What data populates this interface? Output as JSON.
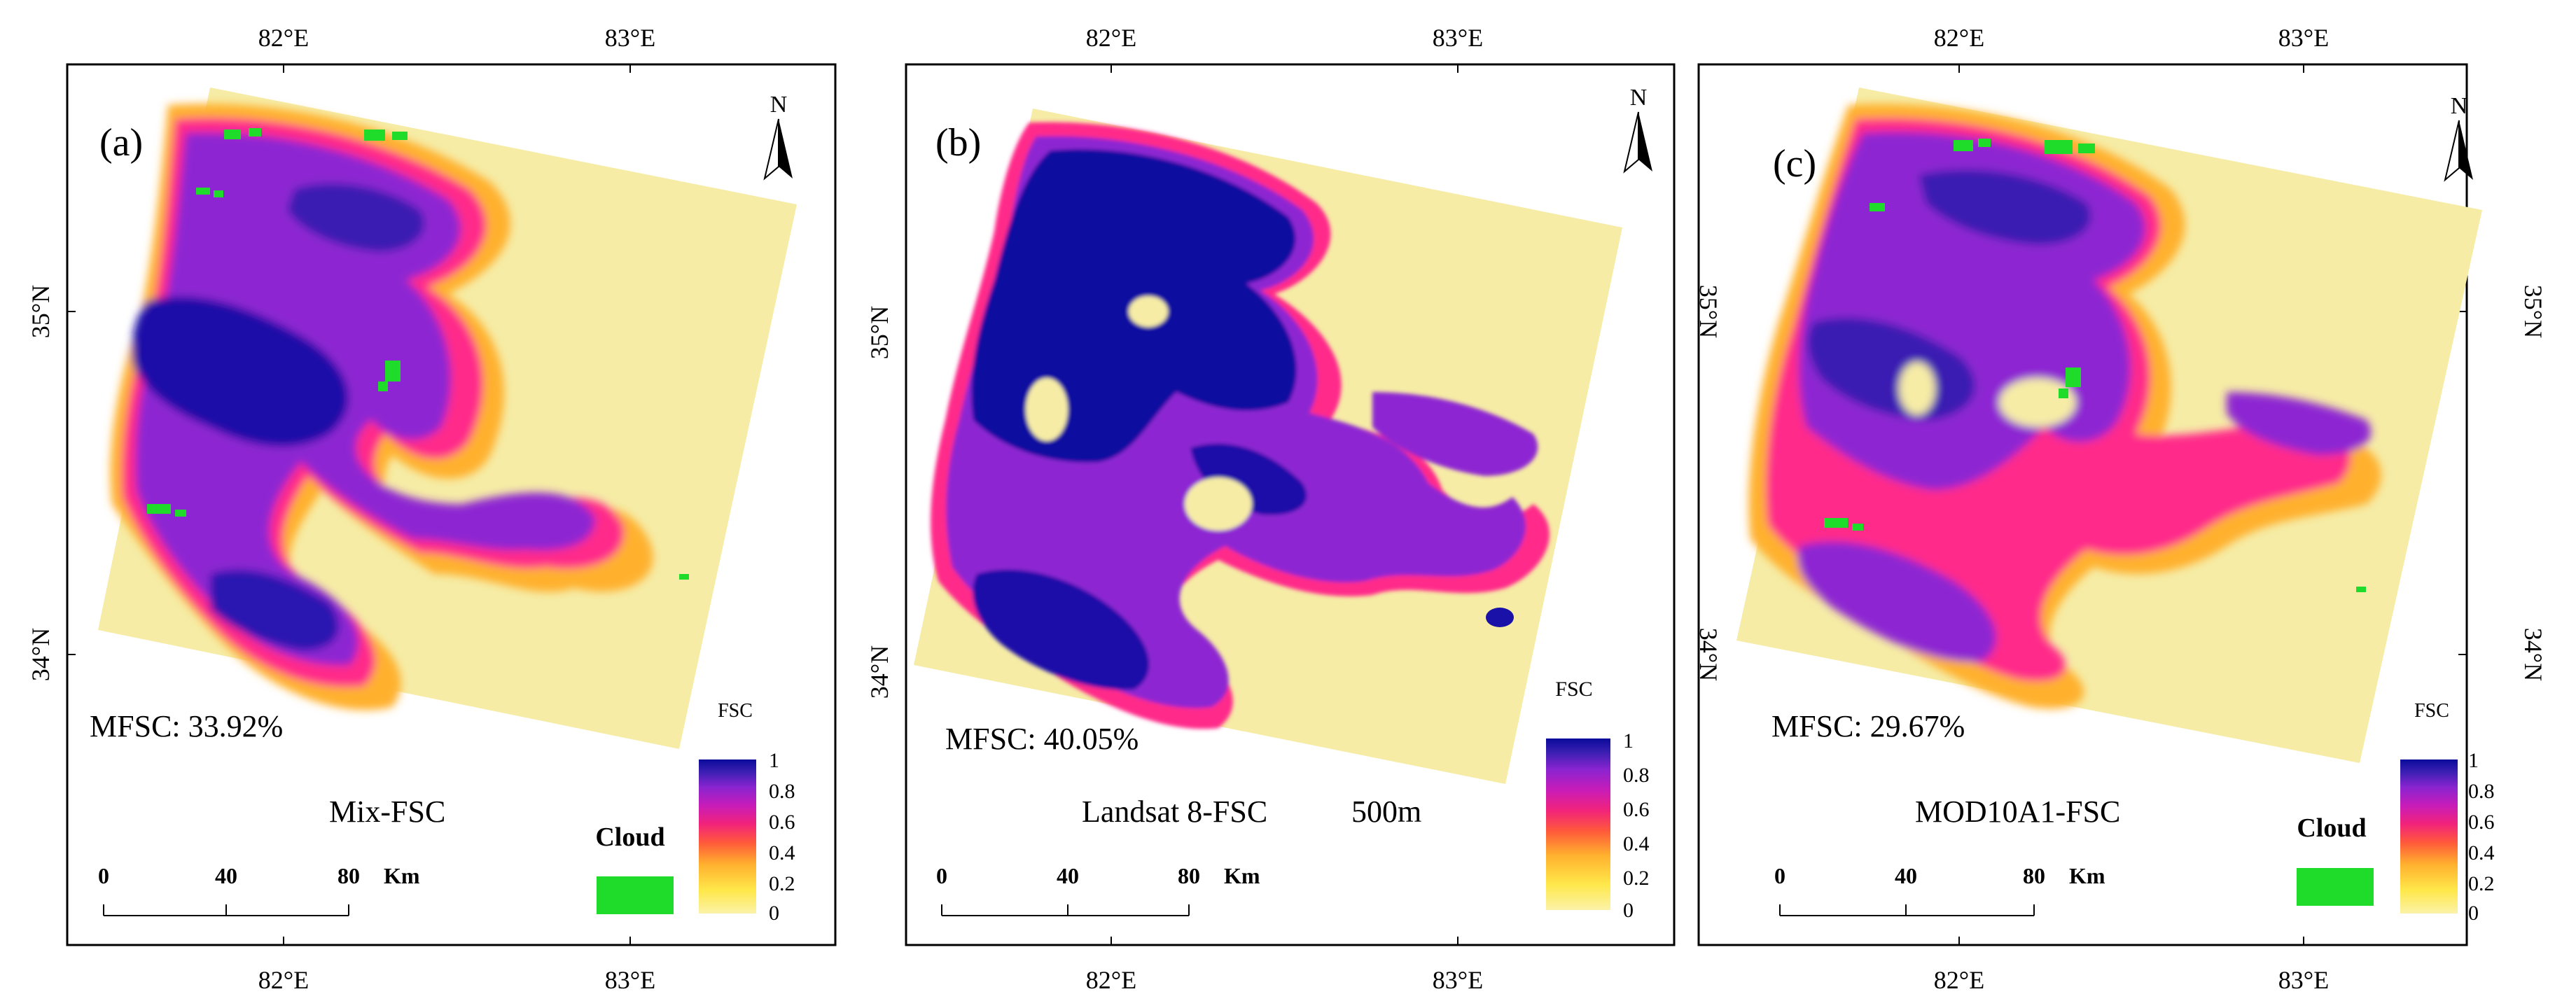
{
  "figure": {
    "colors": {
      "fsc_ramp": [
        "#fbf2a8",
        "#ffe84a",
        "#ffb02e",
        "#ff5a3a",
        "#f2237a",
        "#c81cb8",
        "#8a24d0",
        "#3a1fb2",
        "#0a0a9a"
      ],
      "cloud": "#1fdc2a",
      "snow_dense": "#1a11a8",
      "snow_mid": "#8d28d2",
      "snow_edge": "#ff2a8a",
      "snow_low": "#ffb12d",
      "background_land": "#f6eca6"
    },
    "panels": [
      {
        "id": "a",
        "label": "(a)",
        "title": "Mix-FSC",
        "subtitle": "",
        "mfsc": "MFSC: 33.92%",
        "lon_top": [
          "82°E",
          "83°E"
        ],
        "lon_bottom": [
          "82°E",
          "83°E"
        ],
        "lat_left": [
          "35°N",
          "34°N"
        ],
        "lat_right": [],
        "north": "N",
        "cloud_label": "Cloud",
        "scale_ticks": [
          "0",
          "40",
          "80"
        ],
        "scale_unit": "Km",
        "legend_title": "FSC",
        "legend_ticks": [
          "1",
          "0.8",
          "0.6",
          "0.4",
          "0.2",
          "0"
        ]
      },
      {
        "id": "b",
        "label": "(b)",
        "title": "Landsat 8-FSC",
        "subtitle": "500m",
        "mfsc": "MFSC: 40.05%",
        "lon_top": [
          "82°E",
          "83°E"
        ],
        "lon_bottom": [
          "82°E",
          "83°E"
        ],
        "lat_left": [
          "35°N",
          "34°N"
        ],
        "lat_right": [
          "35°N",
          "34°N"
        ],
        "north": "N",
        "cloud_label": "",
        "scale_ticks": [
          "0",
          "40",
          "80"
        ],
        "scale_unit": "Km",
        "legend_title": "FSC",
        "legend_ticks": [
          "1",
          "0.8",
          "0.6",
          "0.4",
          "0.2",
          "0"
        ]
      },
      {
        "id": "c",
        "label": "(c)",
        "title": "MOD10A1-FSC",
        "subtitle": "",
        "mfsc": "MFSC: 29.67%",
        "lon_top": [
          "82°E",
          "83°E"
        ],
        "lon_bottom": [
          "82°E",
          "83°E"
        ],
        "lat_left": [],
        "lat_right": [
          "35°N",
          "34°N"
        ],
        "north": "N",
        "cloud_label": "Cloud",
        "scale_ticks": [
          "0",
          "40",
          "80"
        ],
        "scale_unit": "Km",
        "legend_title": "FSC",
        "legend_ticks": [
          "1",
          "0.8",
          "0.6",
          "0.4",
          "0.2",
          "0"
        ]
      }
    ]
  }
}
